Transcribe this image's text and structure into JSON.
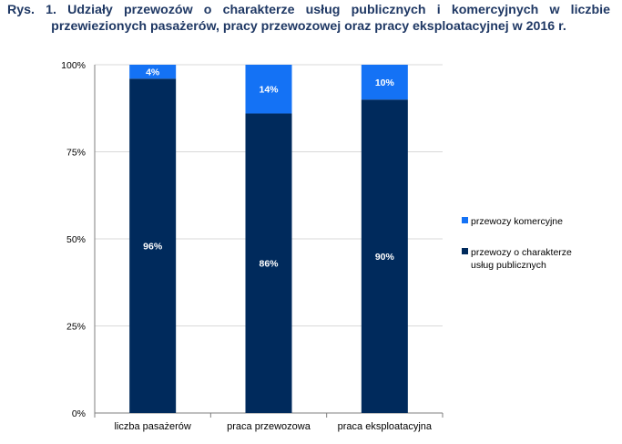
{
  "title": {
    "line1": "Rys. 1. Udziały przewozów o charakterze usług publicznych i komercyjnych w liczbie",
    "line2": "przewiezionych pasażerów, pracy przewozowej oraz pracy eksploatacyjnej w 2016 r."
  },
  "colors": {
    "publiczne": "#002a5c",
    "komercyjne": "#1472f5",
    "axis": "#7f7f7f",
    "grid": "#d9d9d9"
  },
  "chart_data": {
    "type": "bar",
    "stacked": true,
    "categories": [
      "liczba pasażerów",
      "praca przewozowa",
      "praca eksploatacyjna"
    ],
    "series": [
      {
        "name": "przewozy o charakterze usług publicznych",
        "values": [
          96,
          86,
          90
        ],
        "labels": [
          "96%",
          "86%",
          "90%"
        ]
      },
      {
        "name": "przewozy komercyjne",
        "values": [
          4,
          14,
          10
        ],
        "labels": [
          "4%",
          "14%",
          "10%"
        ]
      }
    ],
    "yticks": [
      "0%",
      "25%",
      "50%",
      "75%",
      "100%"
    ],
    "ytick_values": [
      0,
      25,
      50,
      75,
      100
    ],
    "ylim": [
      0,
      100
    ],
    "grid": true,
    "legend_position": "right"
  },
  "legend": {
    "items": [
      {
        "label": "przewozy komercyjne",
        "color_key": "komercyjne"
      },
      {
        "label": "przewozy o charakterze usług publicznych",
        "label_line1": "przewozy o charakterze",
        "label_line2": "usług publicznych",
        "color_key": "publiczne"
      }
    ]
  }
}
